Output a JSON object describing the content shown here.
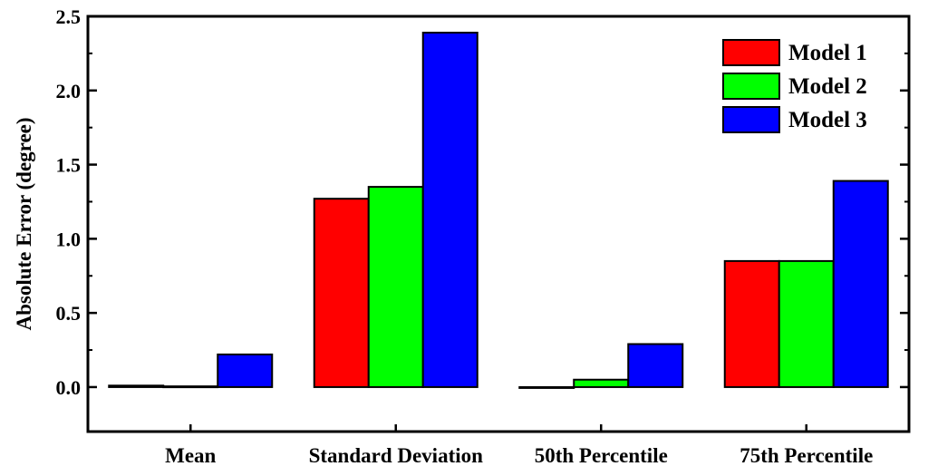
{
  "chart_data": {
    "type": "bar",
    "title": "",
    "xlabel": "",
    "ylabel": "Absolute Error (degree)",
    "ylim": [
      -0.3,
      2.5
    ],
    "yticks": [
      0.0,
      0.5,
      1.0,
      1.5,
      2.0,
      2.5
    ],
    "ytick_labels": [
      "0.0",
      "0.5",
      "1.0",
      "1.5",
      "2.0",
      "2.5"
    ],
    "categories": [
      "Mean",
      "Standard Deviation",
      "50th Percentile",
      "75th Percentile"
    ],
    "series": [
      {
        "name": "Model 1",
        "color": "#ff0000",
        "values": [
          0.01,
          1.27,
          0.0,
          0.85
        ]
      },
      {
        "name": "Model 2",
        "color": "#00ff00",
        "values": [
          0.005,
          1.35,
          0.05,
          0.85
        ]
      },
      {
        "name": "Model 3",
        "color": "#0000ff",
        "values": [
          0.22,
          2.39,
          0.29,
          1.39
        ]
      }
    ],
    "legend_position": "top-right",
    "grid": false
  }
}
